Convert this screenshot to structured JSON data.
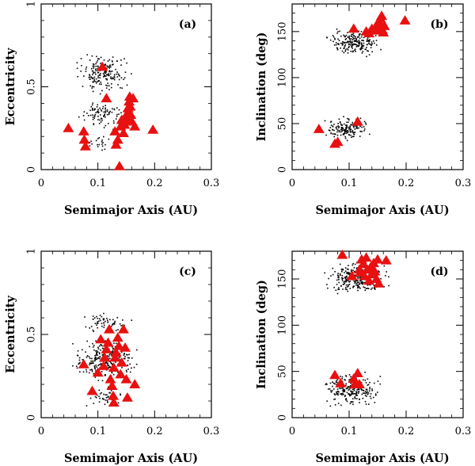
{
  "chart_data": [
    {
      "type": "scatter",
      "id": "a",
      "panel_label": "(a)",
      "xlabel": "Semimajor Axis (AU)",
      "ylabel": "Eccentricity",
      "xlim": [
        0,
        0.3
      ],
      "ylim": [
        0,
        1
      ],
      "xticks": [
        0,
        0.1,
        0.2,
        0.3
      ],
      "xtick_labels": [
        "0",
        "0.1",
        "0.2",
        "0.3"
      ],
      "yticks": [
        0,
        0.5,
        1
      ],
      "ytick_labels": [
        "0",
        "0.5",
        "1"
      ],
      "grid": false,
      "dot_cloud": [
        {
          "x": [
            0.05,
            0.165
          ],
          "y": [
            0.45,
            0.72
          ],
          "count": 190
        },
        {
          "x": [
            0.06,
            0.16
          ],
          "y": [
            0.22,
            0.45
          ],
          "count": 90
        },
        {
          "x": [
            0.075,
            0.13
          ],
          "y": [
            0.1,
            0.22
          ],
          "count": 20
        }
      ],
      "series": [
        {
          "color": "#e81010",
          "points": [
            [
              0.048,
              0.25
            ],
            [
              0.075,
              0.23
            ],
            [
              0.076,
              0.18
            ],
            [
              0.078,
              0.14
            ],
            [
              0.108,
              0.62
            ],
            [
              0.115,
              0.43
            ],
            [
              0.13,
              0.23
            ],
            [
              0.132,
              0.15
            ],
            [
              0.135,
              0.18
            ],
            [
              0.138,
              0.02
            ],
            [
              0.14,
              0.26
            ],
            [
              0.142,
              0.3
            ],
            [
              0.145,
              0.22
            ],
            [
              0.147,
              0.27
            ],
            [
              0.15,
              0.31
            ],
            [
              0.152,
              0.34
            ],
            [
              0.153,
              0.37
            ],
            [
              0.155,
              0.41
            ],
            [
              0.156,
              0.44
            ],
            [
              0.157,
              0.38
            ],
            [
              0.158,
              0.33
            ],
            [
              0.16,
              0.29
            ],
            [
              0.162,
              0.43
            ],
            [
              0.165,
              0.26
            ],
            [
              0.197,
              0.24
            ],
            [
              0.155,
              0.29
            ]
          ]
        }
      ]
    },
    {
      "type": "scatter",
      "id": "b",
      "panel_label": "(b)",
      "xlabel": "Semimajor Axis (AU)",
      "ylabel": "Inclination (deg)",
      "xlim": [
        0,
        0.3
      ],
      "ylim": [
        0,
        180
      ],
      "xticks": [
        0,
        0.1,
        0.2,
        0.3
      ],
      "xtick_labels": [
        "0",
        "0.1",
        "0.2",
        "0.3"
      ],
      "yticks": [
        0,
        50,
        100,
        150
      ],
      "ytick_labels": [
        "0",
        "50",
        "100",
        "150"
      ],
      "grid": false,
      "dot_cloud": [
        {
          "x": [
            0.05,
            0.165
          ],
          "y": [
            120,
            155
          ],
          "count": 200
        },
        {
          "x": [
            0.05,
            0.145
          ],
          "y": [
            28,
            60
          ],
          "count": 150
        }
      ],
      "series": [
        {
          "color": "#e81010",
          "points": [
            [
              0.047,
              44
            ],
            [
              0.075,
              28
            ],
            [
              0.08,
              30
            ],
            [
              0.108,
              153
            ],
            [
              0.115,
              52
            ],
            [
              0.13,
              150
            ],
            [
              0.135,
              148
            ],
            [
              0.14,
              153
            ],
            [
              0.145,
              151
            ],
            [
              0.148,
              155
            ],
            [
              0.15,
              158
            ],
            [
              0.152,
              161
            ],
            [
              0.155,
              164
            ],
            [
              0.157,
              167
            ],
            [
              0.158,
              152
            ],
            [
              0.16,
              149
            ],
            [
              0.162,
              156
            ],
            [
              0.198,
              162
            ]
          ]
        }
      ]
    },
    {
      "type": "scatter",
      "id": "c",
      "panel_label": "(c)",
      "xlabel": "Semimajor Axis (AU)",
      "ylabel": "Eccentricity",
      "xlim": [
        0,
        0.3
      ],
      "ylim": [
        0,
        1
      ],
      "xticks": [
        0,
        0.1,
        0.2,
        0.3
      ],
      "xtick_labels": [
        "0",
        "0.1",
        "0.2",
        "0.3"
      ],
      "yticks": [
        0,
        0.5,
        1
      ],
      "ytick_labels": [
        "0",
        "0.5",
        "1"
      ],
      "grid": false,
      "dot_cloud": [
        {
          "x": [
            0.045,
            0.18
          ],
          "y": [
            0.2,
            0.5
          ],
          "count": 260
        },
        {
          "x": [
            0.06,
            0.17
          ],
          "y": [
            0.5,
            0.64
          ],
          "count": 60
        },
        {
          "x": [
            0.07,
            0.16
          ],
          "y": [
            0.05,
            0.2
          ],
          "count": 45
        }
      ],
      "series": [
        {
          "color": "#e81010",
          "points": [
            [
              0.075,
              0.32
            ],
            [
              0.09,
              0.16
            ],
            [
              0.1,
              0.27
            ],
            [
              0.105,
              0.47
            ],
            [
              0.11,
              0.31
            ],
            [
              0.112,
              0.36
            ],
            [
              0.115,
              0.41
            ],
            [
              0.118,
              0.45
            ],
            [
              0.12,
              0.53
            ],
            [
              0.122,
              0.23
            ],
            [
              0.125,
              0.19
            ],
            [
              0.127,
              0.13
            ],
            [
              0.128,
              0.3
            ],
            [
              0.13,
              0.36
            ],
            [
              0.132,
              0.39
            ],
            [
              0.135,
              0.48
            ],
            [
              0.137,
              0.43
            ],
            [
              0.14,
              0.26
            ],
            [
              0.142,
              0.33
            ],
            [
              0.145,
              0.53
            ],
            [
              0.148,
              0.42
            ],
            [
              0.15,
              0.23
            ],
            [
              0.152,
              0.12
            ],
            [
              0.165,
              0.2
            ],
            [
              0.128,
              0.09
            ]
          ]
        }
      ]
    },
    {
      "type": "scatter",
      "id": "d",
      "panel_label": "(d)",
      "xlabel": "Semimajor Axis (AU)",
      "ylabel": "Inclination (deg)",
      "xlim": [
        0,
        0.3
      ],
      "ylim": [
        0,
        180
      ],
      "xticks": [
        0,
        0.1,
        0.2,
        0.3
      ],
      "xtick_labels": [
        "0",
        "0.1",
        "0.2",
        "0.3"
      ],
      "yticks": [
        0,
        50,
        100,
        150
      ],
      "ytick_labels": [
        "0",
        "50",
        "100",
        "150"
      ],
      "grid": false,
      "dot_cloud": [
        {
          "x": [
            0.045,
            0.18
          ],
          "y": [
            130,
            172
          ],
          "count": 250
        },
        {
          "x": [
            0.045,
            0.165
          ],
          "y": [
            8,
            52
          ],
          "count": 230
        }
      ],
      "series": [
        {
          "color": "#e81010",
          "points": [
            [
              0.075,
              46
            ],
            [
              0.085,
              37
            ],
            [
              0.088,
              176
            ],
            [
              0.105,
              153
            ],
            [
              0.108,
              42
            ],
            [
              0.11,
              36
            ],
            [
              0.115,
              48
            ],
            [
              0.118,
              160
            ],
            [
              0.12,
              157
            ],
            [
              0.122,
              171
            ],
            [
              0.125,
              166
            ],
            [
              0.127,
              153
            ],
            [
              0.13,
              173
            ],
            [
              0.132,
              160
            ],
            [
              0.135,
              148
            ],
            [
              0.138,
              163
            ],
            [
              0.14,
              155
            ],
            [
              0.143,
              167
            ],
            [
              0.145,
              158
            ],
            [
              0.148,
              150
            ],
            [
              0.15,
              171
            ],
            [
              0.152,
              145
            ],
            [
              0.165,
              170
            ],
            [
              0.118,
              36
            ]
          ]
        }
      ]
    }
  ]
}
